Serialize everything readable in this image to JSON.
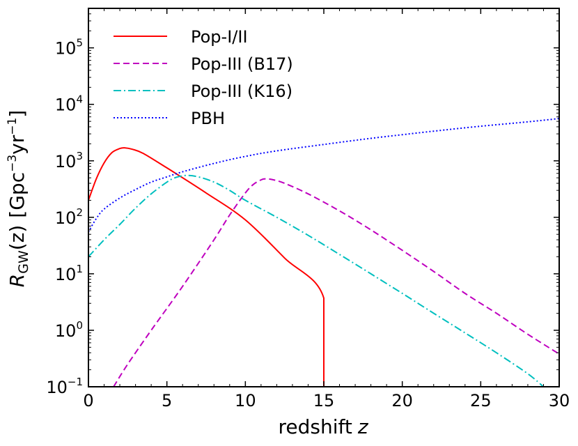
{
  "chart_data": {
    "type": "line",
    "xlabel": "redshift z",
    "xlabel_text": "redshift",
    "xlabel_var": "z",
    "ylabel": "R_GW(z) [Gpc^-3 yr^-1]",
    "ylabel_parts": {
      "R": "R",
      "sub": "GW",
      "arg": "(z)",
      "unit_open": "[Gpc",
      "unit_exp1": "−3",
      "unit_mid": "yr",
      "unit_exp2": "−1",
      "unit_close": "]"
    },
    "xlim": [
      0,
      30
    ],
    "ylim": [
      0.1,
      500000
    ],
    "yscale": "log",
    "xticks": [
      {
        "value": 0,
        "label": "0"
      },
      {
        "value": 5,
        "label": "5"
      },
      {
        "value": 10,
        "label": "10"
      },
      {
        "value": 15,
        "label": "15"
      },
      {
        "value": 20,
        "label": "20"
      },
      {
        "value": 25,
        "label": "25"
      },
      {
        "value": 30,
        "label": "30"
      }
    ],
    "yticks": [
      {
        "value": 0.1,
        "base": "10",
        "exp": "−1"
      },
      {
        "value": 1,
        "base": "10",
        "exp": "0"
      },
      {
        "value": 10,
        "base": "10",
        "exp": "1"
      },
      {
        "value": 100,
        "base": "10",
        "exp": "2"
      },
      {
        "value": 1000,
        "base": "10",
        "exp": "3"
      },
      {
        "value": 10000,
        "base": "10",
        "exp": "4"
      },
      {
        "value": 100000,
        "base": "10",
        "exp": "5"
      }
    ],
    "legend_position": "top-left",
    "series": [
      {
        "name": "Pop-I/II",
        "color": "#ff0000",
        "style": "solid",
        "x": [
          0,
          0.5,
          1,
          1.5,
          2,
          2.3,
          2.8,
          3.5,
          5,
          7.5,
          10,
          12.5,
          15
        ],
        "y": [
          200,
          480,
          920,
          1400,
          1650,
          1700,
          1600,
          1350,
          750,
          270,
          90,
          19,
          3.7
        ],
        "drop_to_floor_at_x": 15
      },
      {
        "name": "Pop-III (B17)",
        "color": "#bf00bf",
        "style": "dashed",
        "x": [
          1.6,
          2.5,
          4,
          6,
          8,
          9,
          10,
          10.5,
          11,
          11.3,
          11.8,
          12.5,
          14,
          16,
          18,
          20,
          22,
          24,
          26,
          28,
          30
        ],
        "y": [
          0.1,
          0.25,
          1.0,
          6,
          40,
          110,
          270,
          380,
          460,
          480,
          460,
          400,
          260,
          130,
          60,
          26,
          11,
          4.5,
          2.0,
          0.85,
          0.38
        ]
      },
      {
        "name": "Pop-III (K16)",
        "color": "#00bfbf",
        "style": "dashdot",
        "x": [
          0,
          1,
          2,
          3,
          4,
          5,
          5.5,
          6.2,
          7,
          8,
          9,
          10,
          12,
          14,
          16,
          18,
          20,
          22,
          24,
          26,
          28,
          29
        ],
        "y": [
          20,
          40,
          75,
          145,
          260,
          420,
          500,
          550,
          520,
          420,
          300,
          200,
          100,
          48,
          22,
          10,
          4.5,
          2.0,
          0.9,
          0.4,
          0.17,
          0.1
        ]
      },
      {
        "name": "PBH",
        "color": "#0000ff",
        "style": "dotted",
        "x": [
          0,
          0.5,
          1,
          2,
          3,
          4,
          5,
          6,
          8,
          10,
          12,
          15,
          18,
          20,
          22,
          25,
          28,
          30
        ],
        "y": [
          55,
          95,
          140,
          220,
          310,
          420,
          520,
          640,
          900,
          1200,
          1500,
          1950,
          2500,
          2900,
          3350,
          4100,
          4900,
          5600
        ]
      }
    ]
  }
}
